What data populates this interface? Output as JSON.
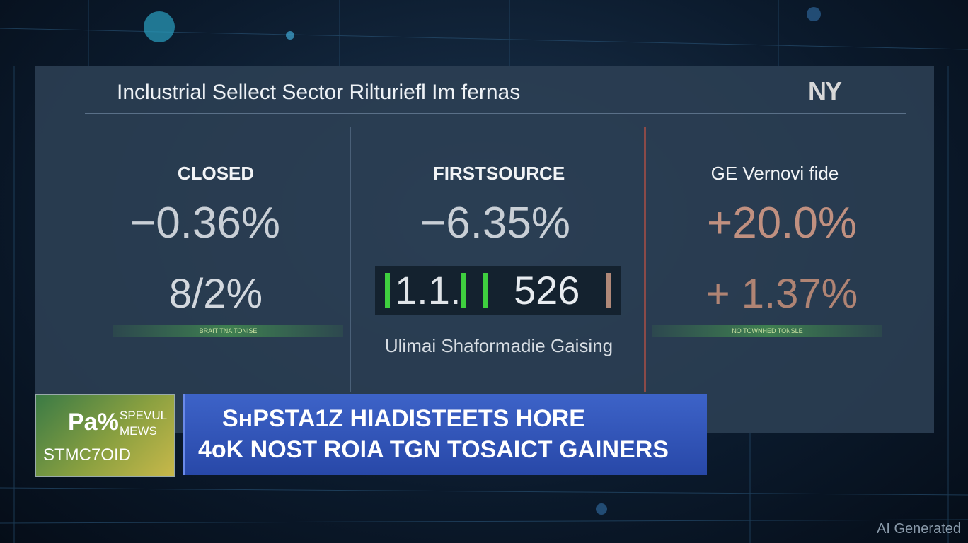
{
  "header": {
    "title": "Inclustrial Sellect Sector Rilturiefl Im fernas",
    "logo": "NY"
  },
  "panels": [
    {
      "heading": "CLOSED",
      "value": "−0.36%",
      "secondary": "8/2%",
      "bar_label": "BRAIT TNA TONISE"
    },
    {
      "heading": "FIRSTSOURCE",
      "value": "−6.35%",
      "ticker_left": "1.1.",
      "ticker_right": "526",
      "caption": "Ulimai Shaformadie Gaising"
    },
    {
      "heading": "GE Vernovi fide",
      "value": "+20.0%",
      "secondary": "+ 1.37%",
      "bar_label": "NO TOWNHED TONSLE"
    }
  ],
  "lower_third": {
    "logo_big": "Pa%",
    "logo_small": [
      "SPEVUL",
      "MEWS"
    ],
    "logo_code": "STMC7OID",
    "headline": [
      "SнPSTA1Z HIADISTEETS HORE",
      "4oK NOST ROIA TGN TOSAICT GAINERS"
    ]
  },
  "watermark": "AI Generated"
}
